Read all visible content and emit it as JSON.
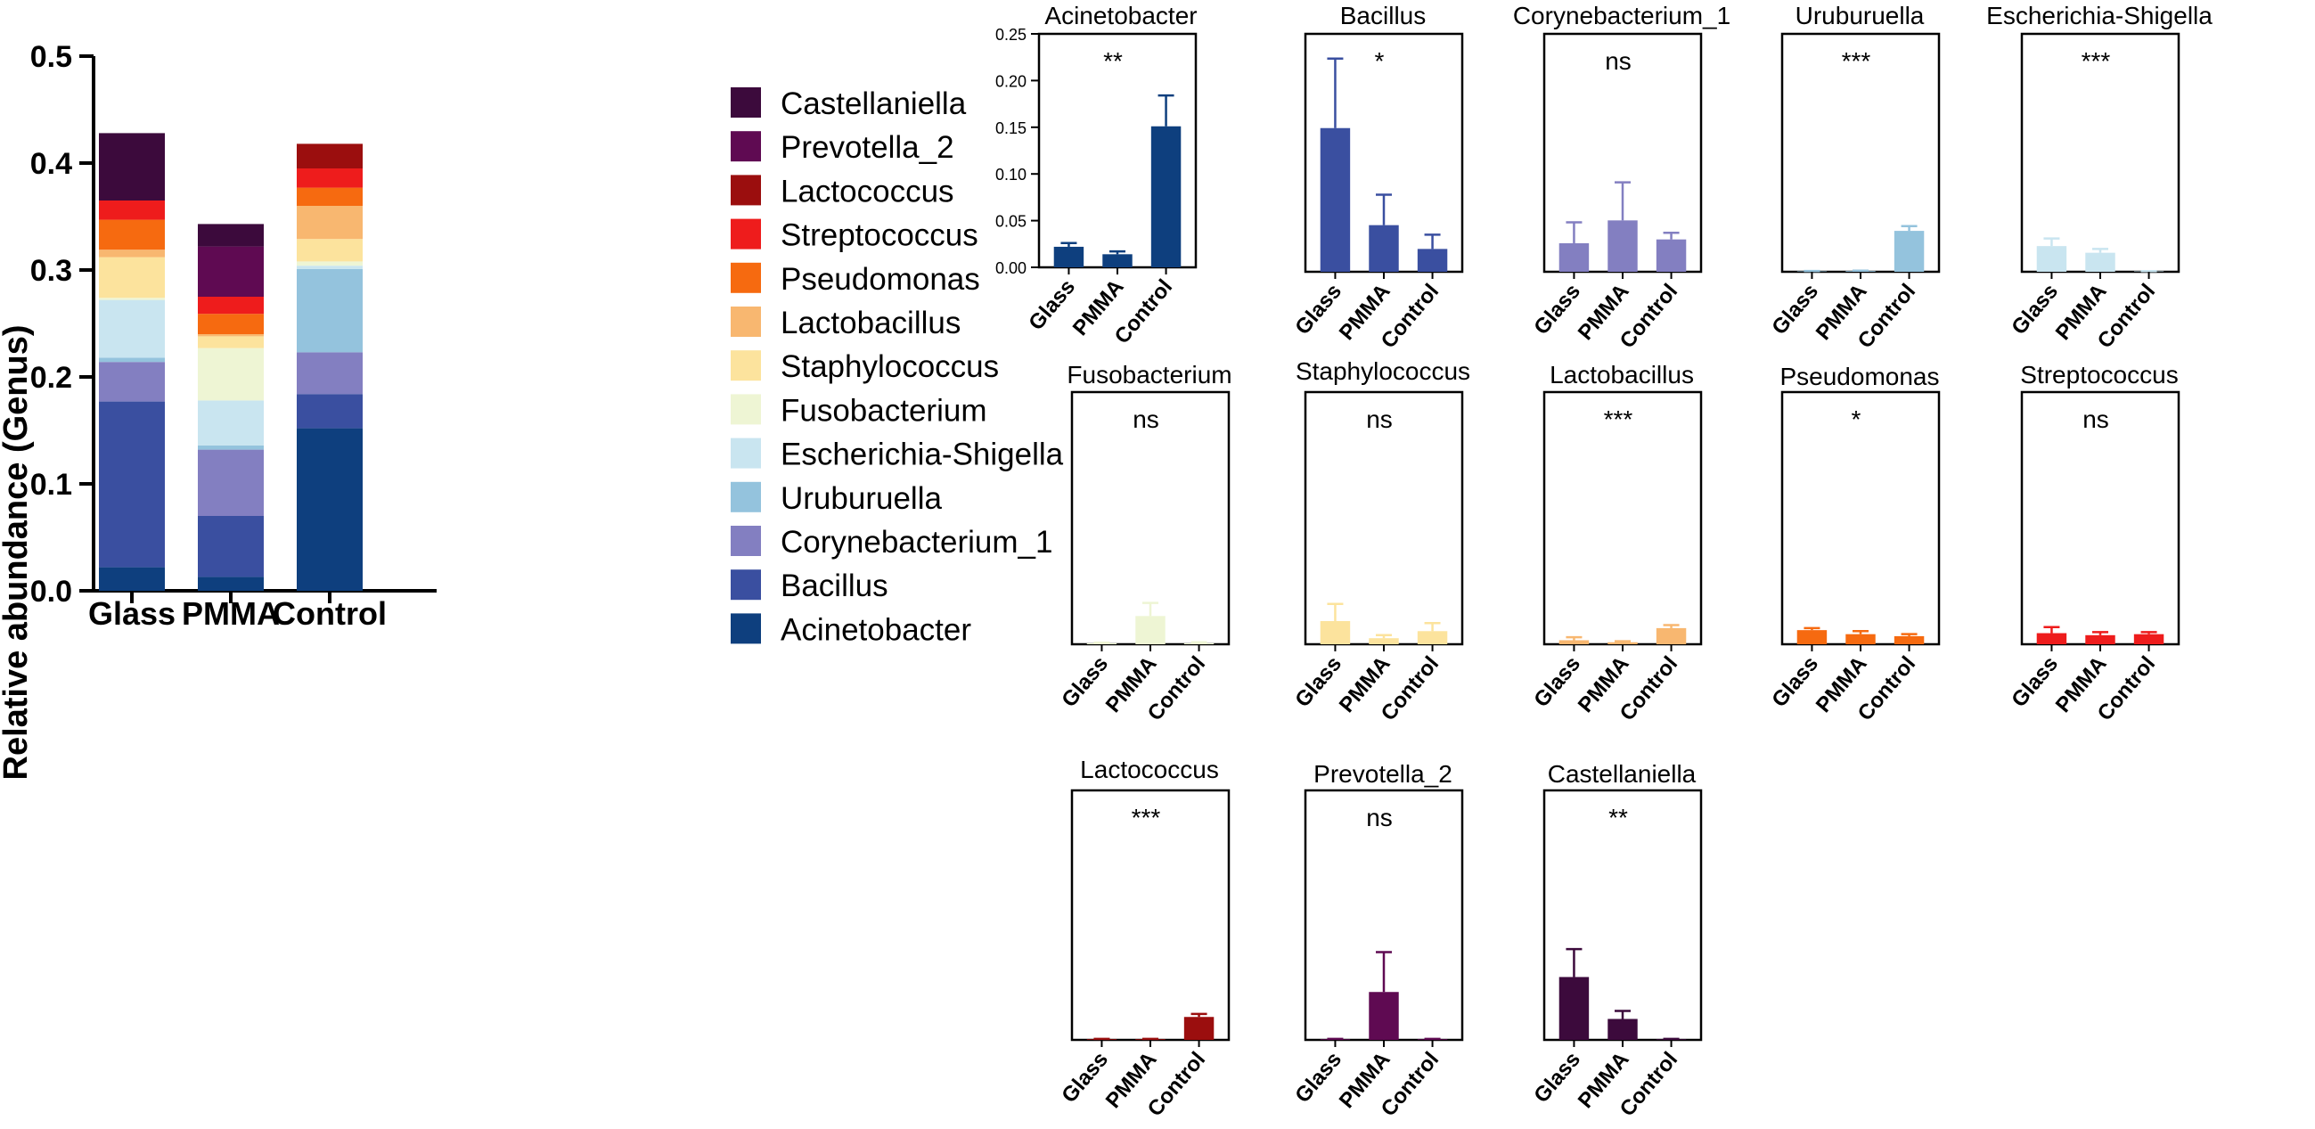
{
  "chart_data": [
    {
      "type": "bar",
      "stacked": true,
      "ylabel": "Relative abundance (Genus)",
      "categories": [
        "Glass",
        "PMMA",
        "Control"
      ],
      "ylim": [
        0,
        0.5
      ],
      "yticks": [
        "0.0",
        "0.1",
        "0.2",
        "0.3",
        "0.4",
        "0.5"
      ],
      "ytick_values": [
        0,
        0.1,
        0.2,
        0.3,
        0.4,
        0.5
      ],
      "legend_position": "right",
      "series": [
        {
          "name": "Acinetobacter",
          "color": "#0E3F7E",
          "values": [
            0.022,
            0.013,
            0.152
          ]
        },
        {
          "name": "Bacillus",
          "color": "#3A4FA0",
          "values": [
            0.155,
            0.057,
            0.032
          ]
        },
        {
          "name": "Corynebacterium_1",
          "color": "#837FC1",
          "values": [
            0.037,
            0.062,
            0.039
          ]
        },
        {
          "name": "Uruburuella",
          "color": "#94C3DD",
          "values": [
            0.004,
            0.004,
            0.078
          ]
        },
        {
          "name": "Escherichia-Shigella",
          "color": "#C9E5F0",
          "values": [
            0.054,
            0.042,
            0.003
          ]
        },
        {
          "name": "Fusobacterium",
          "color": "#EEF5D4",
          "values": [
            0.002,
            0.049,
            0.004
          ]
        },
        {
          "name": "Staphylococcus",
          "color": "#FCE39D",
          "values": [
            0.038,
            0.011,
            0.021
          ]
        },
        {
          "name": "Lactobacillus",
          "color": "#F8B770",
          "values": [
            0.007,
            0.002,
            0.031
          ]
        },
        {
          "name": "Pseudomonas",
          "color": "#F66A10",
          "values": [
            0.028,
            0.019,
            0.017
          ]
        },
        {
          "name": "Streptococcus",
          "color": "#EE1C1C",
          "values": [
            0.018,
            0.016,
            0.018
          ]
        },
        {
          "name": "Lactococcus",
          "color": "#9B0E0E",
          "values": [
            0.0,
            0.0,
            0.023
          ]
        },
        {
          "name": "Prevotella_2",
          "color": "#5F0A52",
          "values": [
            0.0,
            0.047,
            0.0
          ]
        },
        {
          "name": "Castellaniella",
          "color": "#3C0A3C",
          "values": [
            0.063,
            0.021,
            0.0
          ]
        }
      ]
    },
    {
      "type": "bar",
      "title": "Acinetobacter",
      "categories": [
        "Glass",
        "PMMA",
        "Control"
      ],
      "values": [
        0.022,
        0.014,
        0.151
      ],
      "errors": [
        0.004,
        0.003,
        0.033
      ],
      "significance": "**",
      "ylim": [
        0,
        0.25
      ],
      "yticks": [
        "0.00",
        "0.05",
        "0.10",
        "0.15",
        "0.20",
        "0.25"
      ],
      "ytick_values": [
        0,
        0.05,
        0.1,
        0.15,
        0.2,
        0.25
      ],
      "color": "#0E3F7E"
    },
    {
      "type": "bar",
      "title": "Bacillus",
      "categories": [
        "Glass",
        "PMMA",
        "Control"
      ],
      "values": [
        0.151,
        0.049,
        0.024
      ],
      "errors": [
        0.073,
        0.032,
        0.015
      ],
      "significance": "*",
      "ylim": [
        0,
        0.25
      ],
      "color": "#3A4FA0"
    },
    {
      "type": "bar",
      "title": "Corynebacterium_1",
      "categories": [
        "Glass",
        "PMMA",
        "Control"
      ],
      "values": [
        0.03,
        0.054,
        0.034
      ],
      "errors": [
        0.022,
        0.04,
        0.007
      ],
      "significance": "ns",
      "ylim": [
        0,
        0.25
      ],
      "color": "#837FC1"
    },
    {
      "type": "bar",
      "title": "Uruburuella",
      "categories": [
        "Glass",
        "PMMA",
        "Control"
      ],
      "values": [
        0.0005,
        0.0008,
        0.043
      ],
      "errors": [
        0.0003,
        0.0004,
        0.005
      ],
      "significance": "***",
      "ylim": [
        0,
        0.25
      ],
      "color": "#94C3DD"
    },
    {
      "type": "bar",
      "title": "Escherichia-Shigella",
      "categories": [
        "Glass",
        "PMMA",
        "Control"
      ],
      "values": [
        0.027,
        0.02,
        0.0005
      ],
      "errors": [
        0.008,
        0.004,
        0.0002
      ],
      "significance": "***",
      "ylim": [
        0,
        0.25
      ],
      "color": "#C9E5F0"
    },
    {
      "type": "bar",
      "title": "Fusobacterium",
      "categories": [
        "Glass",
        "PMMA",
        "Control"
      ],
      "values": [
        0.001,
        0.028,
        0.001
      ],
      "errors": [
        0.0005,
        0.013,
        0.001
      ],
      "significance": "ns",
      "ylim": [
        0,
        0.25
      ],
      "color": "#EEF5D4"
    },
    {
      "type": "bar",
      "title": "Staphylococcus",
      "categories": [
        "Glass",
        "PMMA",
        "Control"
      ],
      "values": [
        0.023,
        0.006,
        0.013
      ],
      "errors": [
        0.017,
        0.003,
        0.008
      ],
      "significance": "ns",
      "ylim": [
        0,
        0.25
      ],
      "color": "#FCE39D"
    },
    {
      "type": "bar",
      "title": "Lactobacillus",
      "categories": [
        "Glass",
        "PMMA",
        "Control"
      ],
      "values": [
        0.004,
        0.002,
        0.016
      ],
      "errors": [
        0.003,
        0.001,
        0.003
      ],
      "significance": "***",
      "ylim": [
        0,
        0.25
      ],
      "color": "#F8B770"
    },
    {
      "type": "bar",
      "title": "Pseudomonas",
      "categories": [
        "Glass",
        "PMMA",
        "Control"
      ],
      "values": [
        0.014,
        0.01,
        0.008
      ],
      "errors": [
        0.002,
        0.003,
        0.002
      ],
      "significance": "*",
      "ylim": [
        0,
        0.25
      ],
      "color": "#F66A10"
    },
    {
      "type": "bar",
      "title": "Streptococcus",
      "categories": [
        "Glass",
        "PMMA",
        "Control"
      ],
      "values": [
        0.011,
        0.009,
        0.01
      ],
      "errors": [
        0.006,
        0.003,
        0.002
      ],
      "significance": "ns",
      "ylim": [
        0,
        0.25
      ],
      "color": "#EE1C1C"
    },
    {
      "type": "bar",
      "title": "Lactococcus",
      "categories": [
        "Glass",
        "PMMA",
        "Control"
      ],
      "values": [
        0.0007,
        0.0007,
        0.023
      ],
      "errors": [
        0.0003,
        0.0003,
        0.003
      ],
      "significance": "***",
      "ylim": [
        0,
        0.25
      ],
      "color": "#9B0E0E"
    },
    {
      "type": "bar",
      "title": "Prevotella_2",
      "categories": [
        "Glass",
        "PMMA",
        "Control"
      ],
      "values": [
        0.0007,
        0.048,
        0.0007
      ],
      "errors": [
        0.0003,
        0.04,
        0.0003
      ],
      "significance": "ns",
      "ylim": [
        0,
        0.25
      ],
      "color": "#5F0A52"
    },
    {
      "type": "bar",
      "title": "Castellaniella",
      "categories": [
        "Glass",
        "PMMA",
        "Control"
      ],
      "values": [
        0.063,
        0.021,
        0.0007
      ],
      "errors": [
        0.028,
        0.008,
        0.0003
      ],
      "significance": "**",
      "ylim": [
        0,
        0.25
      ],
      "color": "#3C0A3C"
    }
  ]
}
